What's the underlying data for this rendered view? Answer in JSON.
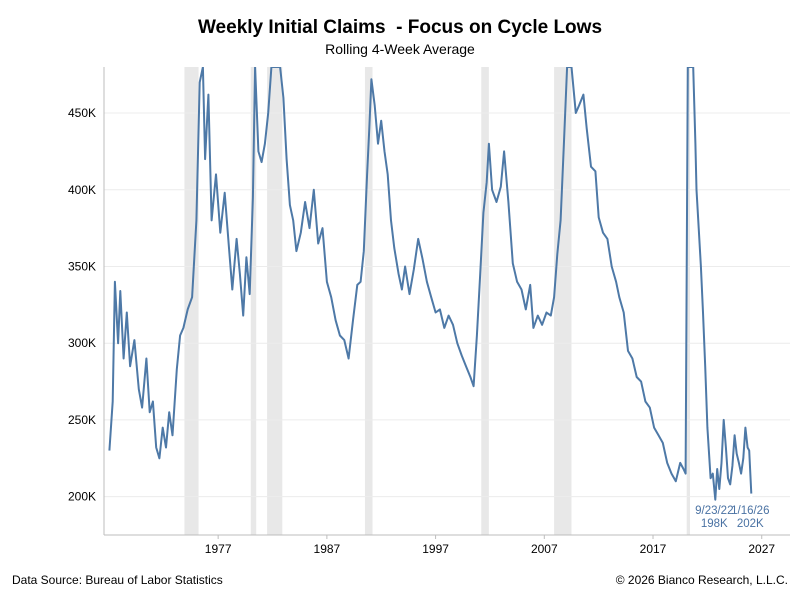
{
  "chart_data": {
    "type": "line",
    "title": "Weekly Initial Claims  - Focus on Cycle Lows",
    "subtitle": "Rolling 4-Week Average",
    "xlabel": "",
    "ylabel": "",
    "xlim": [
      1966.5,
      2029.6
    ],
    "ylim": [
      175000,
      480000
    ],
    "ytick_values": [
      200000,
      250000,
      300000,
      350000,
      400000,
      450000
    ],
    "ytick_labels": [
      "200K",
      "250K",
      "300K",
      "350K",
      "400K",
      "450K"
    ],
    "xtick_values": [
      1977,
      1987,
      1997,
      2007,
      2017,
      2027
    ],
    "xtick_labels": [
      "1977",
      "1987",
      "1997",
      "2007",
      "2017",
      "2027"
    ],
    "grid": true,
    "recessions": [
      [
        1973.9,
        1975.2
      ],
      [
        1980.0,
        1980.5
      ],
      [
        1981.5,
        1982.9
      ],
      [
        1990.5,
        1991.2
      ],
      [
        2001.2,
        2001.9
      ],
      [
        2007.9,
        2009.5
      ],
      [
        2020.1,
        2020.4
      ]
    ],
    "series": [
      {
        "name": "Initial Claims 4-Week Average",
        "color": "#4e79a7",
        "points": [
          [
            1967.0,
            230000
          ],
          [
            1967.3,
            262000
          ],
          [
            1967.5,
            340000
          ],
          [
            1967.8,
            300000
          ],
          [
            1968.0,
            334000
          ],
          [
            1968.3,
            290000
          ],
          [
            1968.6,
            320000
          ],
          [
            1968.9,
            285000
          ],
          [
            1969.3,
            302000
          ],
          [
            1969.7,
            270000
          ],
          [
            1970.0,
            258000
          ],
          [
            1970.4,
            290000
          ],
          [
            1970.7,
            255000
          ],
          [
            1971.0,
            262000
          ],
          [
            1971.3,
            232000
          ],
          [
            1971.6,
            225000
          ],
          [
            1971.9,
            245000
          ],
          [
            1972.2,
            232000
          ],
          [
            1972.5,
            255000
          ],
          [
            1972.8,
            240000
          ],
          [
            1973.2,
            283000
          ],
          [
            1973.5,
            305000
          ],
          [
            1973.8,
            310000
          ],
          [
            1974.2,
            322000
          ],
          [
            1974.6,
            330000
          ],
          [
            1975.0,
            380000
          ],
          [
            1975.3,
            470000
          ],
          [
            1975.6,
            480000
          ],
          [
            1975.8,
            420000
          ],
          [
            1976.1,
            462000
          ],
          [
            1976.4,
            380000
          ],
          [
            1976.8,
            410000
          ],
          [
            1977.2,
            372000
          ],
          [
            1977.6,
            398000
          ],
          [
            1978.0,
            362000
          ],
          [
            1978.3,
            335000
          ],
          [
            1978.7,
            368000
          ],
          [
            1979.0,
            345000
          ],
          [
            1979.3,
            318000
          ],
          [
            1979.6,
            356000
          ],
          [
            1979.9,
            332000
          ],
          [
            1980.2,
            395000
          ],
          [
            1980.4,
            480000
          ],
          [
            1980.7,
            425000
          ],
          [
            1981.0,
            418000
          ],
          [
            1981.3,
            430000
          ],
          [
            1981.6,
            450000
          ],
          [
            1981.9,
            480000
          ],
          [
            1982.3,
            480000
          ],
          [
            1982.7,
            480000
          ],
          [
            1983.0,
            460000
          ],
          [
            1983.3,
            420000
          ],
          [
            1983.6,
            390000
          ],
          [
            1983.9,
            380000
          ],
          [
            1984.2,
            360000
          ],
          [
            1984.6,
            372000
          ],
          [
            1985.0,
            392000
          ],
          [
            1985.4,
            375000
          ],
          [
            1985.8,
            400000
          ],
          [
            1986.2,
            365000
          ],
          [
            1986.6,
            375000
          ],
          [
            1987.0,
            340000
          ],
          [
            1987.4,
            330000
          ],
          [
            1987.8,
            315000
          ],
          [
            1988.2,
            305000
          ],
          [
            1988.6,
            302000
          ],
          [
            1989.0,
            290000
          ],
          [
            1989.4,
            315000
          ],
          [
            1989.8,
            338000
          ],
          [
            1990.1,
            340000
          ],
          [
            1990.4,
            360000
          ],
          [
            1990.7,
            410000
          ],
          [
            1990.9,
            440000
          ],
          [
            1991.1,
            472000
          ],
          [
            1991.4,
            455000
          ],
          [
            1991.7,
            430000
          ],
          [
            1992.0,
            445000
          ],
          [
            1992.3,
            425000
          ],
          [
            1992.6,
            410000
          ],
          [
            1992.9,
            380000
          ],
          [
            1993.2,
            362000
          ],
          [
            1993.6,
            345000
          ],
          [
            1993.9,
            335000
          ],
          [
            1994.2,
            350000
          ],
          [
            1994.6,
            332000
          ],
          [
            1995.0,
            348000
          ],
          [
            1995.4,
            368000
          ],
          [
            1995.8,
            355000
          ],
          [
            1996.2,
            340000
          ],
          [
            1996.6,
            330000
          ],
          [
            1997.0,
            320000
          ],
          [
            1997.4,
            322000
          ],
          [
            1997.8,
            310000
          ],
          [
            1998.2,
            318000
          ],
          [
            1998.6,
            312000
          ],
          [
            1999.0,
            300000
          ],
          [
            1999.4,
            292000
          ],
          [
            1999.8,
            285000
          ],
          [
            2000.2,
            278000
          ],
          [
            2000.5,
            272000
          ],
          [
            2000.8,
            305000
          ],
          [
            2001.1,
            345000
          ],
          [
            2001.4,
            385000
          ],
          [
            2001.7,
            405000
          ],
          [
            2001.9,
            430000
          ],
          [
            2002.2,
            400000
          ],
          [
            2002.6,
            392000
          ],
          [
            2003.0,
            402000
          ],
          [
            2003.3,
            425000
          ],
          [
            2003.7,
            392000
          ],
          [
            2004.1,
            352000
          ],
          [
            2004.5,
            340000
          ],
          [
            2004.9,
            335000
          ],
          [
            2005.3,
            322000
          ],
          [
            2005.7,
            338000
          ],
          [
            2006.0,
            310000
          ],
          [
            2006.4,
            318000
          ],
          [
            2006.8,
            312000
          ],
          [
            2007.2,
            320000
          ],
          [
            2007.6,
            318000
          ],
          [
            2007.9,
            330000
          ],
          [
            2008.2,
            358000
          ],
          [
            2008.5,
            380000
          ],
          [
            2008.8,
            430000
          ],
          [
            2009.1,
            480000
          ],
          [
            2009.5,
            480000
          ],
          [
            2009.9,
            450000
          ],
          [
            2010.2,
            455000
          ],
          [
            2010.6,
            462000
          ],
          [
            2010.9,
            440000
          ],
          [
            2011.3,
            415000
          ],
          [
            2011.7,
            412000
          ],
          [
            2012.0,
            382000
          ],
          [
            2012.4,
            372000
          ],
          [
            2012.8,
            368000
          ],
          [
            2013.2,
            350000
          ],
          [
            2013.6,
            340000
          ],
          [
            2013.9,
            330000
          ],
          [
            2014.3,
            320000
          ],
          [
            2014.7,
            295000
          ],
          [
            2015.1,
            290000
          ],
          [
            2015.5,
            278000
          ],
          [
            2015.9,
            275000
          ],
          [
            2016.3,
            262000
          ],
          [
            2016.7,
            258000
          ],
          [
            2017.1,
            245000
          ],
          [
            2017.5,
            240000
          ],
          [
            2017.9,
            235000
          ],
          [
            2018.3,
            222000
          ],
          [
            2018.7,
            215000
          ],
          [
            2019.1,
            210000
          ],
          [
            2019.5,
            222000
          ],
          [
            2019.8,
            218000
          ],
          [
            2020.0,
            215000
          ],
          [
            2020.2,
            480000
          ],
          [
            2020.5,
            480000
          ],
          [
            2020.7,
            480000
          ],
          [
            2020.9,
            430000
          ],
          [
            2021.0,
            400000
          ],
          [
            2021.2,
            375000
          ],
          [
            2021.4,
            350000
          ],
          [
            2021.6,
            320000
          ],
          [
            2021.8,
            285000
          ],
          [
            2022.0,
            245000
          ],
          [
            2022.3,
            212000
          ],
          [
            2022.5,
            215000
          ],
          [
            2022.73,
            198000
          ],
          [
            2022.9,
            218000
          ],
          [
            2023.1,
            205000
          ],
          [
            2023.3,
            222000
          ],
          [
            2023.5,
            250000
          ],
          [
            2023.7,
            232000
          ],
          [
            2023.9,
            212000
          ],
          [
            2024.1,
            208000
          ],
          [
            2024.3,
            220000
          ],
          [
            2024.5,
            240000
          ],
          [
            2024.7,
            228000
          ],
          [
            2024.9,
            222000
          ],
          [
            2025.1,
            215000
          ],
          [
            2025.3,
            225000
          ],
          [
            2025.5,
            245000
          ],
          [
            2025.7,
            232000
          ],
          [
            2025.85,
            230000
          ],
          [
            2026.04,
            202000
          ]
        ]
      }
    ],
    "annotations": [
      {
        "x": 2022.73,
        "y": 198000,
        "date": "9/23/22",
        "value": "198K",
        "guide_from": 198000
      },
      {
        "x": 2026.04,
        "y": 202000,
        "date": "1/16/26",
        "value": "202K",
        "guide_from": 202000
      }
    ]
  },
  "footer": {
    "source": "Data Source: Bureau of Labor Statistics",
    "copyright": "© 2026 Bianco Research, L.L.C."
  }
}
